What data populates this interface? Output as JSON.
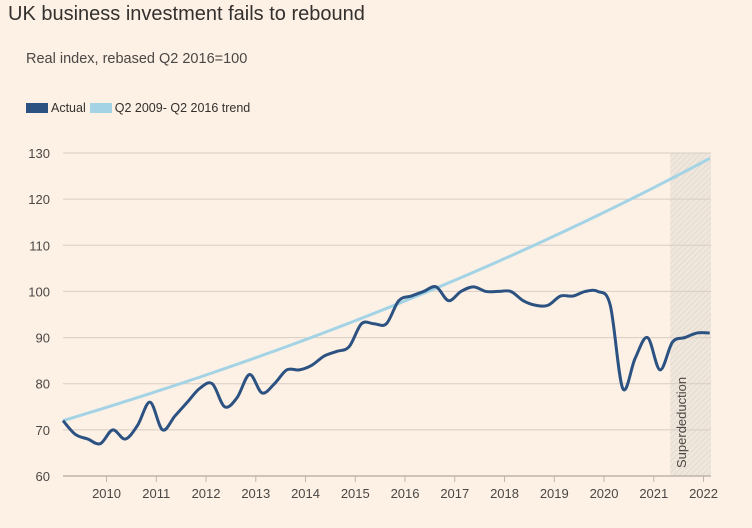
{
  "title": "UK business investment fails to rebound",
  "subtitle": "Real index, rebased Q2 2016=100",
  "colors": {
    "actual": "#2c5282",
    "trend": "#a3d3e5",
    "grid": "#d8cdc3",
    "shade": "#ece3da"
  },
  "chart_data": {
    "type": "line",
    "title": "UK business investment fails to rebound",
    "subtitle": "Real index, rebased Q2 2016=100",
    "ylim": [
      60,
      130
    ],
    "yticks": [
      60,
      70,
      80,
      90,
      100,
      110,
      120,
      130
    ],
    "xlim": [
      2009.125,
      2022.15
    ],
    "xticks": [
      2010,
      2011,
      2012,
      2013,
      2014,
      2015,
      2016,
      2017,
      2018,
      2019,
      2020,
      2021,
      2022
    ],
    "xtick_labels": [
      "2010",
      "2011",
      "2012",
      "2013",
      "2014",
      "2015",
      "2016",
      "2017",
      "2018",
      "2019",
      "2020",
      "2021",
      "2022"
    ],
    "legend": [
      "Actual",
      "Q2 2009- Q2 2016 trend"
    ],
    "legend_position": "top-left",
    "annotation": {
      "label": "Superdeduction",
      "x_start": 2021.33,
      "x_end": 2022.15
    },
    "x": [
      2009.125,
      2009.375,
      2009.625,
      2009.875,
      2010.125,
      2010.375,
      2010.625,
      2010.875,
      2011.125,
      2011.375,
      2011.625,
      2011.875,
      2012.125,
      2012.375,
      2012.625,
      2012.875,
      2013.125,
      2013.375,
      2013.625,
      2013.875,
      2014.125,
      2014.375,
      2014.625,
      2014.875,
      2015.125,
      2015.375,
      2015.625,
      2015.875,
      2016.125,
      2016.375,
      2016.625,
      2016.875,
      2017.125,
      2017.375,
      2017.625,
      2017.875,
      2018.125,
      2018.375,
      2018.625,
      2018.875,
      2019.125,
      2019.375,
      2019.625,
      2019.875,
      2020.125,
      2020.375,
      2020.625,
      2020.875,
      2021.125,
      2021.375,
      2021.625,
      2021.875,
      2022.125
    ],
    "series": [
      {
        "name": "Actual",
        "values": [
          72,
          69,
          68,
          67,
          70,
          68,
          71,
          76,
          70,
          73,
          76,
          79,
          80,
          75,
          77,
          82,
          78,
          80,
          83,
          83,
          84,
          86,
          87,
          88,
          93,
          93,
          93,
          98,
          99,
          100,
          101,
          98,
          100,
          101,
          100,
          100,
          100,
          98,
          97,
          97,
          99,
          99,
          100,
          100,
          97,
          79,
          85.5,
          90,
          83,
          89,
          90,
          91,
          91
        ]
      },
      {
        "name": "Q2 2009- Q2 2016 trend",
        "values": [
          72.0,
          72.81,
          73.63,
          74.46,
          75.3,
          76.15,
          77.0,
          77.87,
          78.75,
          79.63,
          80.53,
          81.43,
          82.35,
          83.28,
          84.22,
          85.16,
          86.12,
          87.09,
          88.07,
          89.06,
          90.06,
          91.07,
          92.1,
          93.13,
          94.18,
          95.24,
          96.31,
          97.4,
          98.49,
          99.6,
          100.72,
          101.85,
          103.0,
          104.16,
          105.33,
          106.51,
          107.71,
          108.92,
          110.15,
          111.39,
          112.64,
          113.91,
          115.19,
          116.49,
          117.8,
          119.12,
          120.46,
          121.81,
          123.18,
          124.57,
          125.97,
          127.39,
          128.82
        ]
      }
    ]
  }
}
